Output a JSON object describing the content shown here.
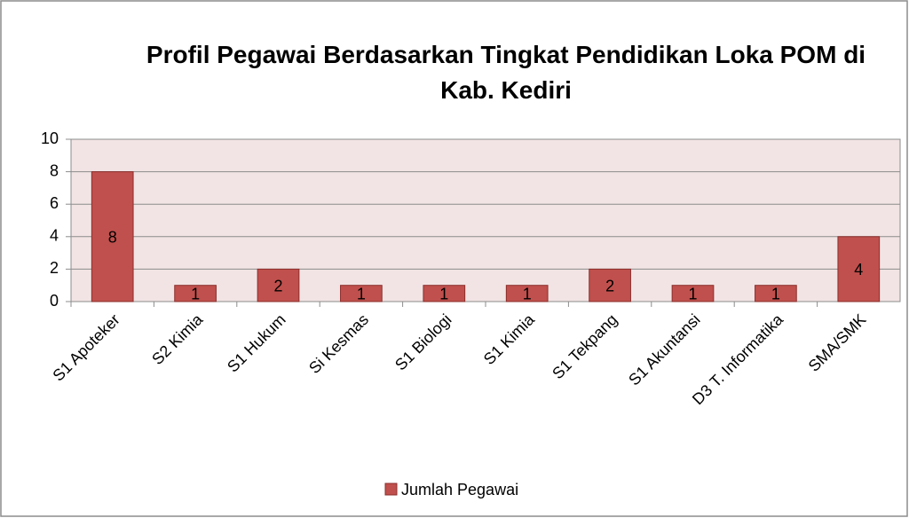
{
  "chart_data": {
    "type": "bar",
    "title": "Profil Pegawai Berdasarkan Tingkat Pendidikan Loka POM di Kab. Kediri",
    "categories": [
      "S1 Apoteker",
      "S2 Kimia",
      "S1 Hukum",
      "Si Kesmas",
      "S1 Biologi",
      "S1 Kimia",
      "S1 Tekpang",
      "S1 Akuntansi",
      "D3 T. Informatika",
      "SMA/SMK"
    ],
    "series": [
      {
        "name": "Jumlah Pegawai",
        "color": "#c0504d",
        "values": [
          8,
          1,
          2,
          1,
          1,
          1,
          2,
          1,
          1,
          4
        ]
      }
    ],
    "ylim": [
      0,
      10
    ],
    "yticks": [
      0,
      2,
      4,
      6,
      8,
      10
    ],
    "grid": true,
    "legend": "bottom"
  }
}
